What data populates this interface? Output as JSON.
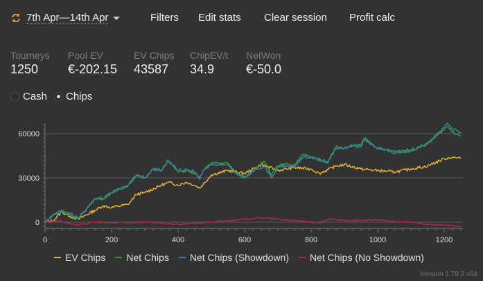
{
  "header": {
    "date_range": "7th Apr—14th Apr",
    "filters": "Filters",
    "edit_stats": "Edit stats",
    "clear_session": "Clear session",
    "profit_calc": "Profit calc"
  },
  "stats": [
    {
      "label": "Tourneys",
      "value": "1250"
    },
    {
      "label": "Pool EV",
      "value": "€-202.15"
    },
    {
      "label": "EV Chips",
      "value": "43587"
    },
    {
      "label": "ChipEV/t",
      "value": "34.9"
    },
    {
      "label": "NetWon",
      "value": "€-50.0"
    }
  ],
  "mode": {
    "cash": "Cash",
    "chips": "Chips",
    "selected": "Chips"
  },
  "version": "Version 1.79.2 x64",
  "colors": {
    "ev": "#e6b335",
    "net": "#2fa33a",
    "showdown": "#3b7fa8",
    "noshowdown": "#b3264a"
  },
  "chart_data": {
    "type": "line",
    "xlim": [
      0,
      1250
    ],
    "ylim": [
      -3000,
      70000
    ],
    "xticks": [
      "0",
      "200",
      "400",
      "600",
      "800",
      "1000",
      "1200"
    ],
    "yticks": [
      "0",
      "30000",
      "60000"
    ],
    "grid": true,
    "legend": "bottom",
    "series": [
      {
        "name": "EV Chips",
        "color": "#e6b335",
        "points": [
          [
            0,
            0
          ],
          [
            25,
            1000
          ],
          [
            50,
            7000
          ],
          [
            75,
            4000
          ],
          [
            100,
            2000
          ],
          [
            150,
            8000
          ],
          [
            175,
            11000
          ],
          [
            200,
            10000
          ],
          [
            250,
            12000
          ],
          [
            275,
            19000
          ],
          [
            300,
            20000
          ],
          [
            350,
            25000
          ],
          [
            375,
            27000
          ],
          [
            400,
            25000
          ],
          [
            425,
            27000
          ],
          [
            450,
            25000
          ],
          [
            465,
            23000
          ],
          [
            500,
            32000
          ],
          [
            550,
            35000
          ],
          [
            600,
            33000
          ],
          [
            650,
            39000
          ],
          [
            700,
            35000
          ],
          [
            750,
            37000
          ],
          [
            800,
            36000
          ],
          [
            825,
            33000
          ],
          [
            875,
            38000
          ],
          [
            900,
            39000
          ],
          [
            950,
            36000
          ],
          [
            1000,
            35000
          ],
          [
            1050,
            34000
          ],
          [
            1100,
            36000
          ],
          [
            1150,
            38000
          ],
          [
            1200,
            43000
          ],
          [
            1225,
            44000
          ],
          [
            1250,
            43000
          ]
        ]
      },
      {
        "name": "Net Chips",
        "color": "#2fa33a",
        "points": [
          [
            0,
            0
          ],
          [
            25,
            5000
          ],
          [
            50,
            8000
          ],
          [
            75,
            5000
          ],
          [
            100,
            2000
          ],
          [
            125,
            9000
          ],
          [
            150,
            16000
          ],
          [
            175,
            16000
          ],
          [
            200,
            20000
          ],
          [
            250,
            25000
          ],
          [
            275,
            32000
          ],
          [
            300,
            30000
          ],
          [
            325,
            36000
          ],
          [
            350,
            35000
          ],
          [
            370,
            42000
          ],
          [
            400,
            34000
          ],
          [
            425,
            35000
          ],
          [
            450,
            33000
          ],
          [
            465,
            29000
          ],
          [
            475,
            35000
          ],
          [
            500,
            40000
          ],
          [
            550,
            40000
          ],
          [
            575,
            33000
          ],
          [
            600,
            31000
          ],
          [
            625,
            35000
          ],
          [
            660,
            41000
          ],
          [
            680,
            32000
          ],
          [
            700,
            38000
          ],
          [
            725,
            40000
          ],
          [
            750,
            38000
          ],
          [
            775,
            46000
          ],
          [
            800,
            44000
          ],
          [
            850,
            41000
          ],
          [
            875,
            51000
          ],
          [
            900,
            50000
          ],
          [
            925,
            52000
          ],
          [
            950,
            52000
          ],
          [
            960,
            57000
          ],
          [
            1000,
            50000
          ],
          [
            1050,
            48000
          ],
          [
            1100,
            49000
          ],
          [
            1125,
            51000
          ],
          [
            1150,
            53000
          ],
          [
            1175,
            58000
          ],
          [
            1200,
            63000
          ],
          [
            1210,
            65000
          ],
          [
            1225,
            61000
          ],
          [
            1250,
            58000
          ]
        ]
      },
      {
        "name": "Net Chips (Showdown)",
        "color": "#3b7fa8",
        "points": [
          [
            0,
            0
          ],
          [
            25,
            5000
          ],
          [
            50,
            7500
          ],
          [
            75,
            6000
          ],
          [
            100,
            3000
          ],
          [
            125,
            9000
          ],
          [
            150,
            16000
          ],
          [
            175,
            16000
          ],
          [
            200,
            20000
          ],
          [
            250,
            25000
          ],
          [
            275,
            32000
          ],
          [
            300,
            30000
          ],
          [
            325,
            36000
          ],
          [
            350,
            35000
          ],
          [
            370,
            42000
          ],
          [
            400,
            35000
          ],
          [
            425,
            36000
          ],
          [
            450,
            34000
          ],
          [
            465,
            30000
          ],
          [
            475,
            35000
          ],
          [
            500,
            39000
          ],
          [
            550,
            39000
          ],
          [
            575,
            33000
          ],
          [
            600,
            30000
          ],
          [
            625,
            34000
          ],
          [
            660,
            38000
          ],
          [
            680,
            30000
          ],
          [
            700,
            37000
          ],
          [
            725,
            38000
          ],
          [
            750,
            38000
          ],
          [
            775,
            44000
          ],
          [
            800,
            44000
          ],
          [
            850,
            40000
          ],
          [
            875,
            50000
          ],
          [
            900,
            50000
          ],
          [
            925,
            52000
          ],
          [
            950,
            51000
          ],
          [
            960,
            56000
          ],
          [
            1000,
            50000
          ],
          [
            1050,
            47000
          ],
          [
            1100,
            48000
          ],
          [
            1125,
            51000
          ],
          [
            1150,
            54000
          ],
          [
            1175,
            59000
          ],
          [
            1200,
            64000
          ],
          [
            1210,
            67000
          ],
          [
            1225,
            63000
          ],
          [
            1250,
            61000
          ]
        ]
      },
      {
        "name": "Net Chips (No Showdown)",
        "color": "#b3264a",
        "points": [
          [
            0,
            0
          ],
          [
            40,
            1000
          ],
          [
            75,
            -1000
          ],
          [
            100,
            -2000
          ],
          [
            150,
            0
          ],
          [
            200,
            -500
          ],
          [
            300,
            0
          ],
          [
            400,
            -1500
          ],
          [
            500,
            0
          ],
          [
            650,
            3000
          ],
          [
            700,
            2000
          ],
          [
            800,
            0
          ],
          [
            825,
            -500
          ],
          [
            860,
            2500
          ],
          [
            900,
            1000
          ],
          [
            1000,
            1500
          ],
          [
            1050,
            500
          ],
          [
            1100,
            0
          ],
          [
            1150,
            -1500
          ],
          [
            1200,
            -2000
          ],
          [
            1250,
            -3000
          ]
        ]
      }
    ]
  }
}
